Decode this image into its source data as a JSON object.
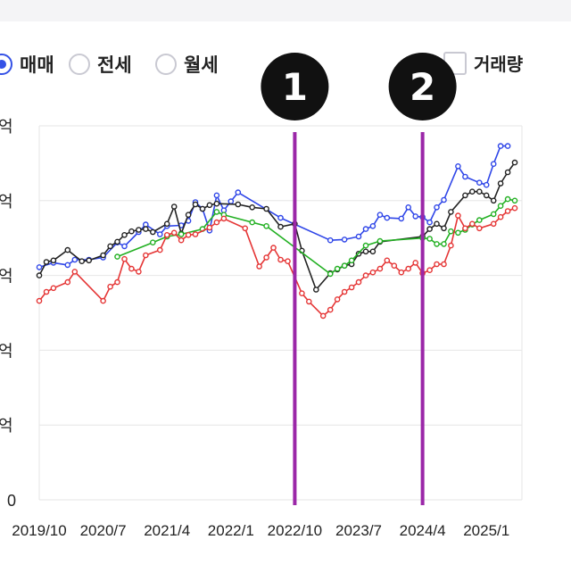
{
  "toolbar": {
    "radios": [
      {
        "label": "매매",
        "selected": true
      },
      {
        "label": "전세",
        "selected": false
      },
      {
        "label": "월세",
        "selected": false
      }
    ],
    "volume_checkbox": {
      "label": "거래량",
      "checked": false
    }
  },
  "markers": [
    {
      "label": "1",
      "x": "2022/10"
    },
    {
      "label": "2",
      "x": "2024/4"
    }
  ],
  "colors": {
    "blue": "#2f46e8",
    "black": "#222222",
    "green": "#22b022",
    "red": "#e53535",
    "marker": "#9b27a8",
    "badge": "#111111",
    "grid": "#e6e6e6"
  },
  "chart_data": {
    "type": "line",
    "x_ticks": [
      "2019/10",
      "2020/7",
      "2021/4",
      "2022/1",
      "2022/10",
      "2023/7",
      "2024/4",
      "2025/1"
    ],
    "y_ticks": [
      {
        "value": 0,
        "label": "0"
      },
      {
        "value": 1,
        "label": "억"
      },
      {
        "value": 2,
        "label": "억"
      },
      {
        "value": 3,
        "label": "억"
      },
      {
        "value": 4,
        "label": "억"
      },
      {
        "value": 5,
        "label": "억"
      }
    ],
    "ylim": [
      0,
      5
    ],
    "grid": true,
    "legend": "none",
    "series": [
      {
        "color": "blue",
        "points": [
          [
            "2019/10",
            3.11
          ],
          [
            "2019/12",
            3.17
          ],
          [
            "2020/2",
            3.14
          ],
          [
            "2020/3",
            3.21
          ],
          [
            "2020/5",
            3.21
          ],
          [
            "2020/7",
            3.24
          ],
          [
            "2020/9",
            3.44
          ],
          [
            "2020/10",
            3.39
          ],
          [
            "2020/12",
            3.58
          ],
          [
            "2021/1",
            3.68
          ],
          [
            "2021/3",
            3.55
          ],
          [
            "2021/4",
            3.66
          ],
          [
            "2021/6",
            3.67
          ],
          [
            "2021/7",
            3.73
          ],
          [
            "2021/8",
            3.98
          ],
          [
            "2021/9",
            3.89
          ],
          [
            "2021/10",
            3.6
          ],
          [
            "2021/11",
            4.07
          ],
          [
            "2021/12",
            3.87
          ],
          [
            "2022/1",
            3.99
          ],
          [
            "2022/2",
            4.11
          ],
          [
            "2022/8",
            3.77
          ],
          [
            "2023/3",
            3.47
          ],
          [
            "2023/5",
            3.48
          ],
          [
            "2023/7",
            3.52
          ],
          [
            "2023/8",
            3.62
          ],
          [
            "2023/9",
            3.66
          ],
          [
            "2023/10",
            3.81
          ],
          [
            "2023/11",
            3.77
          ],
          [
            "2024/1",
            3.76
          ],
          [
            "2024/2",
            3.91
          ],
          [
            "2024/3",
            3.79
          ],
          [
            "2024/4",
            3.78
          ],
          [
            "2024/5",
            3.71
          ],
          [
            "2024/6",
            3.91
          ],
          [
            "2024/7",
            4.01
          ],
          [
            "2024/9",
            4.46
          ],
          [
            "2024/10",
            4.32
          ],
          [
            "2024/12",
            4.24
          ],
          [
            "2025/1",
            4.21
          ],
          [
            "2025/2",
            4.49
          ],
          [
            "2025/3",
            4.73
          ],
          [
            "2025/4",
            4.73
          ]
        ]
      },
      {
        "color": "black",
        "points": [
          [
            "2019/10",
            3.0
          ],
          [
            "2019/11",
            3.18
          ],
          [
            "2019/12",
            3.2
          ],
          [
            "2020/2",
            3.34
          ],
          [
            "2020/4",
            3.19
          ],
          [
            "2020/5",
            3.2
          ],
          [
            "2020/7",
            3.27
          ],
          [
            "2020/8",
            3.39
          ],
          [
            "2020/9",
            3.45
          ],
          [
            "2020/10",
            3.54
          ],
          [
            "2020/11",
            3.59
          ],
          [
            "2020/12",
            3.61
          ],
          [
            "2021/1",
            3.62
          ],
          [
            "2021/2",
            3.58
          ],
          [
            "2021/4",
            3.69
          ],
          [
            "2021/5",
            3.92
          ],
          [
            "2021/6",
            3.56
          ],
          [
            "2021/7",
            3.81
          ],
          [
            "2021/8",
            3.95
          ],
          [
            "2021/9",
            3.89
          ],
          [
            "2021/10",
            3.94
          ],
          [
            "2021/11",
            3.96
          ],
          [
            "2022/2",
            3.95
          ],
          [
            "2022/4",
            3.91
          ],
          [
            "2022/6",
            3.89
          ],
          [
            "2022/8",
            3.65
          ],
          [
            "2022/10",
            3.69
          ],
          [
            "2022/11",
            3.33
          ],
          [
            "2023/1",
            2.81
          ],
          [
            "2023/3",
            3.03
          ],
          [
            "2023/4",
            3.08
          ],
          [
            "2023/5",
            3.13
          ],
          [
            "2023/6",
            3.15
          ],
          [
            "2023/7",
            3.29
          ],
          [
            "2023/8",
            3.32
          ],
          [
            "2023/9",
            3.32
          ],
          [
            "2023/10",
            3.45
          ],
          [
            "2024/4",
            3.52
          ],
          [
            "2024/5",
            3.62
          ],
          [
            "2024/6",
            3.69
          ],
          [
            "2024/7",
            3.63
          ],
          [
            "2024/8",
            3.85
          ],
          [
            "2024/10",
            4.07
          ],
          [
            "2024/11",
            4.12
          ],
          [
            "2024/12",
            4.12
          ],
          [
            "2025/1",
            4.07
          ],
          [
            "2025/2",
            4.0
          ],
          [
            "2025/3",
            4.23
          ],
          [
            "2025/4",
            4.38
          ],
          [
            "2025/5",
            4.51
          ]
        ]
      },
      {
        "color": "green",
        "points": [
          [
            "2020/9",
            3.25
          ],
          [
            "2021/2",
            3.44
          ],
          [
            "2021/4",
            3.52
          ],
          [
            "2021/6",
            3.55
          ],
          [
            "2021/9",
            3.62
          ],
          [
            "2021/11",
            3.85
          ],
          [
            "2021/12",
            3.81
          ],
          [
            "2022/4",
            3.71
          ],
          [
            "2022/6",
            3.66
          ],
          [
            "2023/3",
            3.02
          ],
          [
            "2023/4",
            3.09
          ],
          [
            "2023/5",
            3.13
          ],
          [
            "2023/6",
            3.2
          ],
          [
            "2023/8",
            3.4
          ],
          [
            "2023/10",
            3.46
          ],
          [
            "2024/4",
            3.5
          ],
          [
            "2024/5",
            3.49
          ],
          [
            "2024/6",
            3.42
          ],
          [
            "2024/7",
            3.42
          ],
          [
            "2024/8",
            3.59
          ],
          [
            "2024/9",
            3.57
          ],
          [
            "2024/10",
            3.61
          ],
          [
            "2024/11",
            3.68
          ],
          [
            "2024/12",
            3.74
          ],
          [
            "2025/2",
            3.82
          ],
          [
            "2025/3",
            3.93
          ],
          [
            "2025/4",
            4.02
          ],
          [
            "2025/5",
            4.0
          ]
        ]
      },
      {
        "color": "red",
        "points": [
          [
            "2019/10",
            2.66
          ],
          [
            "2019/11",
            2.78
          ],
          [
            "2019/12",
            2.83
          ],
          [
            "2020/2",
            2.91
          ],
          [
            "2020/3",
            3.05
          ],
          [
            "2020/7",
            2.66
          ],
          [
            "2020/8",
            2.85
          ],
          [
            "2020/9",
            2.91
          ],
          [
            "2020/10",
            3.22
          ],
          [
            "2020/11",
            3.09
          ],
          [
            "2020/12",
            3.05
          ],
          [
            "2021/1",
            3.27
          ],
          [
            "2021/3",
            3.34
          ],
          [
            "2021/4",
            3.54
          ],
          [
            "2021/5",
            3.57
          ],
          [
            "2021/6",
            3.47
          ],
          [
            "2021/7",
            3.54
          ],
          [
            "2021/8",
            3.55
          ],
          [
            "2021/10",
            3.64
          ],
          [
            "2021/11",
            3.71
          ],
          [
            "2021/12",
            3.76
          ],
          [
            "2022/3",
            3.63
          ],
          [
            "2022/5",
            3.12
          ],
          [
            "2022/6",
            3.24
          ],
          [
            "2022/7",
            3.37
          ],
          [
            "2022/8",
            3.21
          ],
          [
            "2022/9",
            3.19
          ],
          [
            "2022/11",
            2.76
          ],
          [
            "2022/12",
            2.65
          ],
          [
            "2023/2",
            2.46
          ],
          [
            "2023/3",
            2.54
          ],
          [
            "2023/4",
            2.68
          ],
          [
            "2023/5",
            2.78
          ],
          [
            "2023/6",
            2.84
          ],
          [
            "2023/7",
            2.91
          ],
          [
            "2023/8",
            3.0
          ],
          [
            "2023/9",
            3.04
          ],
          [
            "2023/10",
            3.09
          ],
          [
            "2023/11",
            3.2
          ],
          [
            "2023/12",
            3.13
          ],
          [
            "2024/1",
            3.04
          ],
          [
            "2024/2",
            3.09
          ],
          [
            "2024/3",
            3.17
          ],
          [
            "2024/4",
            3.03
          ],
          [
            "2024/5",
            3.07
          ],
          [
            "2024/6",
            3.15
          ],
          [
            "2024/7",
            3.15
          ],
          [
            "2024/8",
            3.4
          ],
          [
            "2024/9",
            3.8
          ],
          [
            "2024/10",
            3.63
          ],
          [
            "2024/11",
            3.69
          ],
          [
            "2024/12",
            3.63
          ],
          [
            "2025/2",
            3.69
          ],
          [
            "2025/3",
            3.78
          ],
          [
            "2025/4",
            3.86
          ],
          [
            "2025/5",
            3.9
          ]
        ]
      }
    ]
  }
}
